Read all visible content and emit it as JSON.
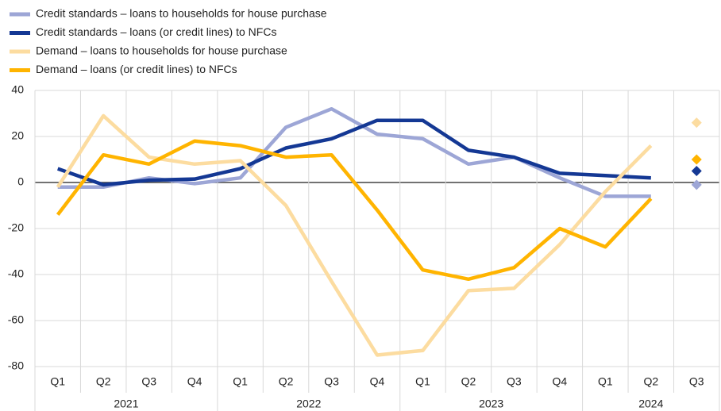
{
  "chart_data": {
    "type": "line",
    "categories": [
      "Q1",
      "Q2",
      "Q3",
      "Q4",
      "Q1",
      "Q2",
      "Q3",
      "Q4",
      "Q1",
      "Q2",
      "Q3",
      "Q4",
      "Q1",
      "Q2",
      "Q3"
    ],
    "category_groups": [
      {
        "name": "2021",
        "count": 4
      },
      {
        "name": "2022",
        "count": 4
      },
      {
        "name": "2023",
        "count": 4
      },
      {
        "name": "2024",
        "count": 3
      }
    ],
    "series": [
      {
        "name": "Credit standards – loans to households for house purchase",
        "color": "#9da6d6",
        "values": [
          -2,
          -2,
          2,
          -0.5,
          2,
          24,
          32,
          21,
          19,
          8,
          11,
          2,
          -6,
          -6,
          null
        ],
        "expected_values": [
          null,
          null,
          null,
          null,
          null,
          null,
          null,
          null,
          null,
          null,
          null,
          null,
          null,
          null,
          -1
        ]
      },
      {
        "name": "Credit standards – loans (or credit lines) to NFCs",
        "color": "#143894",
        "values": [
          6,
          -1,
          1,
          1.5,
          6,
          15,
          19,
          27,
          27,
          14,
          11,
          4,
          3,
          2,
          null
        ],
        "expected_values": [
          null,
          null,
          null,
          null,
          null,
          null,
          null,
          null,
          null,
          null,
          null,
          null,
          null,
          null,
          5
        ]
      },
      {
        "name": "Demand – loans to households for house purchase",
        "color": "#fcdca0",
        "values": [
          -2,
          29,
          11,
          8,
          9.5,
          -10,
          -43,
          -75,
          -73,
          -47,
          -46,
          -27,
          -4,
          16,
          null
        ],
        "expected_values": [
          null,
          null,
          null,
          null,
          null,
          null,
          null,
          null,
          null,
          null,
          null,
          null,
          null,
          null,
          26
        ]
      },
      {
        "name": "Demand – loans (or credit lines) to NFCs",
        "color": "#ffb400",
        "values": [
          -14,
          12,
          8,
          18,
          16,
          11,
          12,
          -12,
          -38,
          -42,
          -37,
          -20,
          -28,
          -7,
          null
        ],
        "expected_values": [
          null,
          null,
          null,
          null,
          null,
          null,
          null,
          null,
          null,
          null,
          null,
          null,
          null,
          null,
          10
        ]
      }
    ],
    "ylim": [
      -80,
      40
    ],
    "yticks": [
      40,
      20,
      0,
      -20,
      -40,
      -60,
      -80
    ],
    "grid": true
  }
}
